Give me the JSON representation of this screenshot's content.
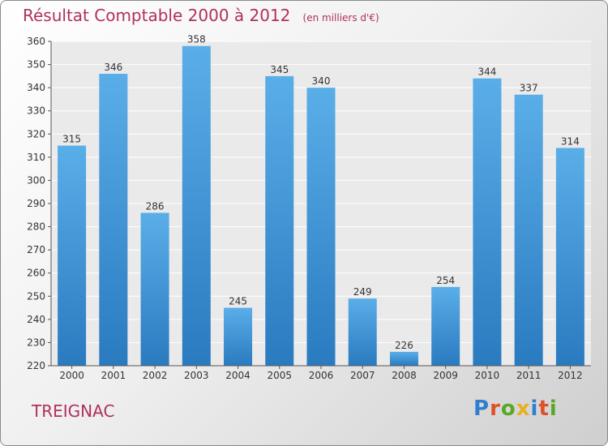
{
  "header": {
    "title": "Résultat Comptable 2000 à 2012",
    "subtitle": "(en milliers d'€)"
  },
  "footer": {
    "town": "TREIGNAC",
    "logo_text": "Proxiti"
  },
  "colors": {
    "title": "#b03060",
    "bar_top": "#5aaee8",
    "bar_bottom": "#2a7ac0",
    "logo_letters": [
      "#2f7fd0",
      "#e0502a",
      "#58a828",
      "#e8b020",
      "#2f7fd0",
      "#e0502a",
      "#58a828"
    ]
  },
  "chart_data": {
    "type": "bar",
    "categories": [
      "2000",
      "2001",
      "2002",
      "2003",
      "2004",
      "2005",
      "2006",
      "2007",
      "2008",
      "2009",
      "2010",
      "2011",
      "2012"
    ],
    "values": [
      315,
      346,
      286,
      358,
      245,
      345,
      340,
      249,
      226,
      254,
      344,
      337,
      314
    ],
    "title": "Résultat Comptable 2000 à 2012",
    "subtitle": "(en milliers d'€)",
    "xlabel": "",
    "ylabel": "",
    "ylim": [
      220,
      360
    ],
    "yticks": [
      220,
      230,
      240,
      250,
      260,
      270,
      280,
      290,
      300,
      310,
      320,
      330,
      340,
      350,
      360
    ],
    "grid": true,
    "data_labels": true
  }
}
